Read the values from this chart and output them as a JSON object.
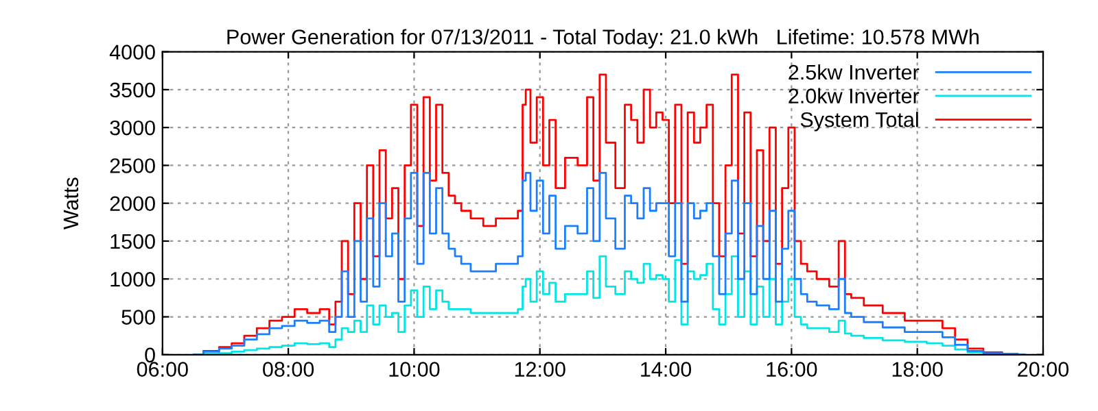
{
  "chart_data": {
    "type": "step",
    "title": "Power Generation for 07/13/2011 - Total Today: 21.0 kWh   Lifetime: 10.578 MWh",
    "ylabel": "Watts",
    "x": [
      6.5,
      6.8,
      7.0,
      7.2,
      7.4,
      7.6,
      7.8,
      8.0,
      8.2,
      8.4,
      8.6,
      8.7,
      8.8,
      8.9,
      9.0,
      9.1,
      9.2,
      9.3,
      9.4,
      9.5,
      9.6,
      9.7,
      9.8,
      9.9,
      10.0,
      10.1,
      10.2,
      10.3,
      10.4,
      10.5,
      10.6,
      10.7,
      10.8,
      11.0,
      11.2,
      11.4,
      11.6,
      11.7,
      11.75,
      11.8,
      11.9,
      12.0,
      12.1,
      12.2,
      12.3,
      12.5,
      12.7,
      12.8,
      12.9,
      13.0,
      13.1,
      13.3,
      13.4,
      13.5,
      13.6,
      13.7,
      13.8,
      13.9,
      14.0,
      14.1,
      14.2,
      14.3,
      14.4,
      14.5,
      14.6,
      14.7,
      14.8,
      14.9,
      15.0,
      15.1,
      15.2,
      15.3,
      15.4,
      15.5,
      15.6,
      15.7,
      15.8,
      15.9,
      16.0,
      16.1,
      16.2,
      16.3,
      16.5,
      16.7,
      16.8,
      16.9,
      17.0,
      17.3,
      17.6,
      18.0,
      18.3,
      18.5,
      18.7,
      18.9,
      19.2,
      19.5,
      19.7
    ],
    "series": [
      {
        "name": "2.5kw Inverter",
        "color": "#1a7fff",
        "values": [
          0,
          40,
          80,
          120,
          200,
          270,
          350,
          380,
          450,
          420,
          450,
          300,
          500,
          1100,
          500,
          1500,
          700,
          1800,
          900,
          2000,
          1300,
          1600,
          700,
          1800,
          2400,
          1200,
          2400,
          1600,
          2200,
          1600,
          1400,
          1300,
          1200,
          1100,
          1100,
          1200,
          1200,
          1300,
          2300,
          2400,
          1900,
          2300,
          1600,
          2100,
          1400,
          1700,
          1600,
          2200,
          1500,
          2400,
          1800,
          1400,
          2100,
          2000,
          1800,
          2200,
          1900,
          2000,
          2000,
          1300,
          2000,
          700,
          2000,
          1800,
          1900,
          2000,
          1300,
          800,
          1600,
          2300,
          1000,
          2000,
          800,
          1700,
          1000,
          1900,
          700,
          1400,
          1900,
          1000,
          800,
          700,
          650,
          600,
          1000,
          550,
          500,
          430,
          360,
          300,
          300,
          230,
          130,
          50,
          20,
          5,
          0
        ]
      },
      {
        "name": "2.0kw Inverter",
        "color": "#00e5e5",
        "values": [
          0,
          10,
          20,
          40,
          60,
          80,
          100,
          120,
          150,
          140,
          150,
          100,
          200,
          350,
          300,
          450,
          300,
          650,
          400,
          650,
          500,
          550,
          300,
          650,
          850,
          500,
          900,
          600,
          850,
          700,
          600,
          600,
          600,
          550,
          550,
          550,
          550,
          600,
          900,
          1000,
          700,
          1100,
          800,
          950,
          700,
          800,
          800,
          1100,
          750,
          1300,
          900,
          800,
          1100,
          1000,
          950,
          1200,
          1000,
          1050,
          1000,
          700,
          1250,
          400,
          1100,
          1000,
          1050,
          1200,
          600,
          400,
          800,
          1300,
          500,
          1100,
          400,
          900,
          500,
          1000,
          400,
          700,
          1000,
          500,
          400,
          350,
          350,
          300,
          450,
          280,
          250,
          220,
          190,
          170,
          150,
          120,
          70,
          30,
          10,
          5,
          0
        ]
      },
      {
        "name": "System Total",
        "color": "#ff0000",
        "values": [
          0,
          50,
          100,
          150,
          250,
          350,
          450,
          500,
          600,
          550,
          600,
          400,
          700,
          1500,
          800,
          2000,
          1000,
          2500,
          1300,
          2700,
          1800,
          2200,
          1000,
          2500,
          3300,
          1700,
          3400,
          2300,
          3300,
          2400,
          2100,
          2000,
          1900,
          1800,
          1700,
          1800,
          1800,
          1900,
          3300,
          3500,
          2800,
          3400,
          2500,
          3100,
          2200,
          2600,
          2500,
          3400,
          2300,
          3700,
          2800,
          2200,
          3300,
          3100,
          2800,
          3500,
          3000,
          3200,
          3100,
          2000,
          3300,
          1200,
          3200,
          2800,
          3000,
          3300,
          2000,
          1300,
          2500,
          3700,
          1600,
          3200,
          1300,
          2700,
          1500,
          3000,
          1200,
          2200,
          3000,
          1500,
          1200,
          1100,
          1000,
          900,
          1500,
          800,
          750,
          650,
          550,
          450,
          450,
          350,
          200,
          80,
          30,
          10,
          0
        ]
      }
    ],
    "xlim": [
      6,
      20
    ],
    "xticks": [
      {
        "value": 6,
        "label": "06:00"
      },
      {
        "value": 8,
        "label": "08:00"
      },
      {
        "value": 10,
        "label": "10:00"
      },
      {
        "value": 12,
        "label": "12:00"
      },
      {
        "value": 14,
        "label": "14:00"
      },
      {
        "value": 16,
        "label": "16:00"
      },
      {
        "value": 18,
        "label": "18:00"
      },
      {
        "value": 20,
        "label": "20:00"
      }
    ],
    "ylim": [
      0,
      4000
    ],
    "yticks": [
      0,
      500,
      1000,
      1500,
      2000,
      2500,
      3000,
      3500,
      4000
    ],
    "grid": true,
    "legend": "top right",
    "line_style": "solid"
  }
}
